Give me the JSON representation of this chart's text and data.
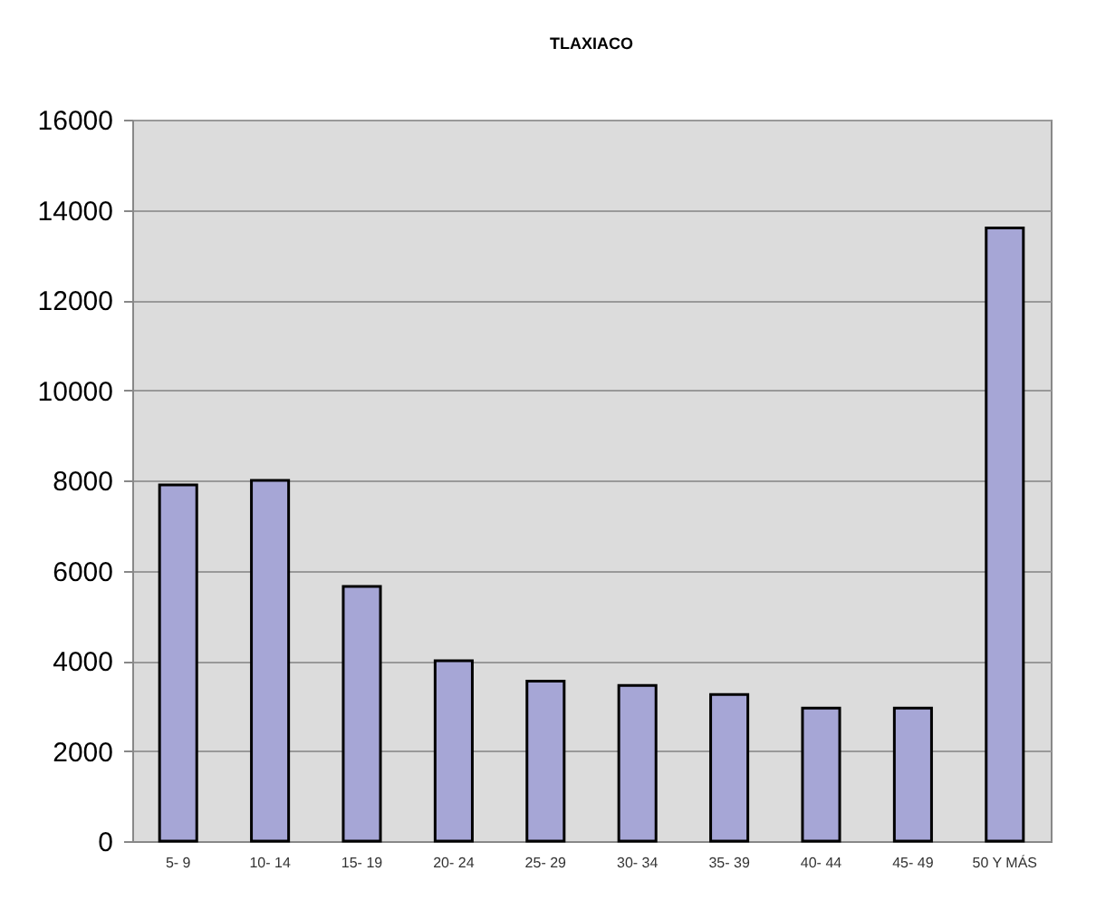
{
  "chart_data": {
    "type": "bar",
    "title": "TLAXIACO",
    "categories": [
      "5- 9",
      "10- 14",
      "15- 19",
      "20- 24",
      "25- 29",
      "30- 34",
      "35- 39",
      "40- 44",
      "45- 49",
      "50 Y MÁS"
    ],
    "values": [
      7900,
      8000,
      5650,
      4000,
      3550,
      3450,
      3250,
      2950,
      2950,
      13600
    ],
    "color": "#a6a6d6",
    "ylim": [
      0,
      16000
    ],
    "yticks": [
      0,
      2000,
      4000,
      6000,
      8000,
      10000,
      12000,
      14000,
      16000
    ],
    "grid": "y"
  }
}
